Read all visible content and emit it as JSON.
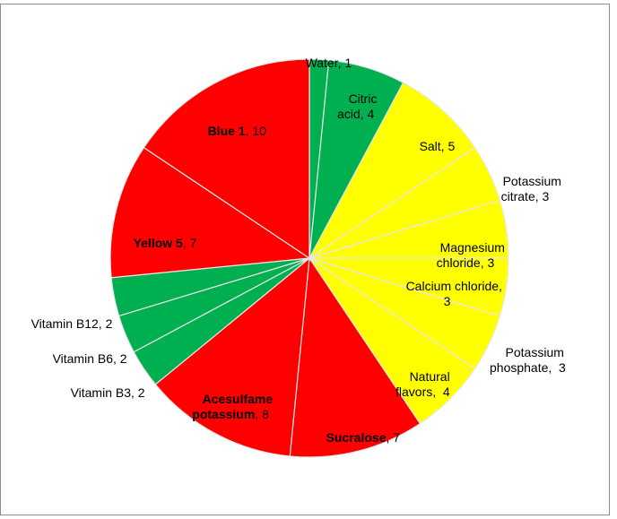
{
  "chart_data": {
    "type": "pie",
    "title": "",
    "slices": [
      {
        "label": "Water",
        "value": 1,
        "color": "#00b050"
      },
      {
        "label": "Citric acid",
        "value": 4,
        "color": "#00b050"
      },
      {
        "label": "Salt",
        "value": 5,
        "color": "#ffff00"
      },
      {
        "label": "Potassium citrate",
        "value": 3,
        "color": "#ffff00"
      },
      {
        "label": "Magnesium chloride",
        "value": 3,
        "color": "#ffff00"
      },
      {
        "label": "Calcium chloride",
        "value": 3,
        "color": "#ffff00"
      },
      {
        "label": "Potassium phosphate",
        "value": 3,
        "color": "#ffff00"
      },
      {
        "label": "Natural flavors",
        "value": 4,
        "color": "#ffff00"
      },
      {
        "label": "Sucralose",
        "value": 7,
        "color": "#ff0000",
        "bold": true
      },
      {
        "label": "Acesulfame potassium",
        "value": 8,
        "color": "#ff0000",
        "bold": true
      },
      {
        "label": "Vitamin B3",
        "value": 2,
        "color": "#00b050"
      },
      {
        "label": "Vitamin B6",
        "value": 2,
        "color": "#00b050"
      },
      {
        "label": "Vitamin B12",
        "value": 2,
        "color": "#00b050"
      },
      {
        "label": "Yellow 5",
        "value": 7,
        "color": "#ff0000",
        "bold": true
      },
      {
        "label": "Blue 1",
        "value": 10,
        "color": "#ff0000",
        "bold": true
      }
    ],
    "labels": [
      {
        "name": "Water",
        "line1": "Water, 1"
      },
      {
        "name": "Citric acid",
        "line1": "Citric",
        "line2": "acid, 4"
      },
      {
        "name": "Salt",
        "line1": "Salt, 5"
      },
      {
        "name": "Potassium citrate",
        "line1": "Potassium",
        "line2": "citrate, 3"
      },
      {
        "name": "Magnesium chloride",
        "line1": "Magnesium",
        "line2": "chloride, 3"
      },
      {
        "name": "Calcium chloride",
        "line1": "Calcium chloride,",
        "line2": "3"
      },
      {
        "name": "Potassium phosphate",
        "line1": "Potassium",
        "line2": "phosphate,  3"
      },
      {
        "name": "Natural flavors",
        "line1": "Natural",
        "line2": "flavors,  4"
      },
      {
        "name": "Sucralose",
        "bold": "Sucralose",
        "rest": ", 7"
      },
      {
        "name": "Acesulfame potassium",
        "bold1": "Acesulfame",
        "bold2": "potassium",
        "rest": ", 8"
      },
      {
        "name": "Vitamin B3",
        "line1": "Vitamin B3, 2"
      },
      {
        "name": "Vitamin B6",
        "line1": "Vitamin B6, 2"
      },
      {
        "name": "Vitamin B12",
        "line1": "Vitamin B12, 2"
      },
      {
        "name": "Yellow 5",
        "bold": "Yellow 5",
        "rest": ", 7"
      },
      {
        "name": "Blue 1",
        "bold": "Blue 1",
        "rest": ", 10"
      }
    ],
    "legend": "none",
    "grid": false
  }
}
